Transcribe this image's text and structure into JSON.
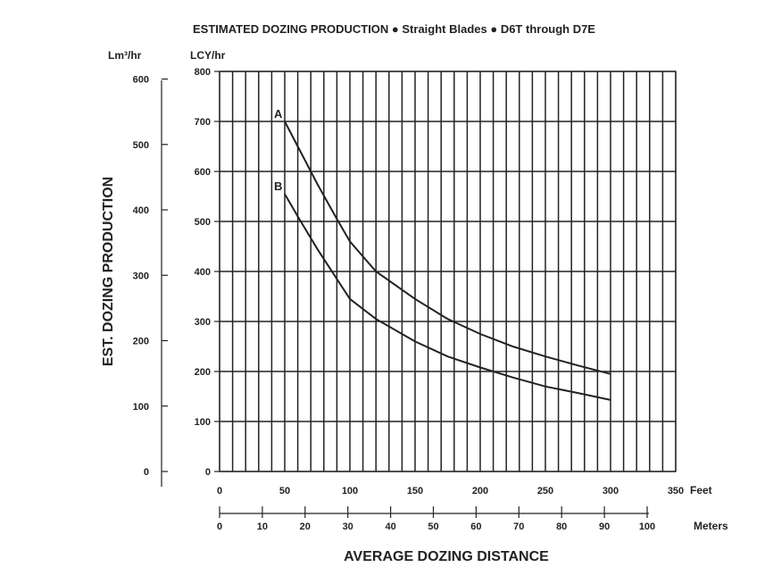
{
  "chart_data": {
    "type": "line",
    "title": "ESTIMATED DOZING PRODUCTION ● Straight Blades ● D6T through D7E",
    "ylabel": "EST. DOZING PRODUCTION",
    "xlabel": "AVERAGE DOZING DISTANCE",
    "y_unit_lcy": "LCY/hr",
    "y_unit_m3": "Lm³/hr",
    "x_unit_feet": "Feet",
    "x_unit_meters": "Meters",
    "ylim_lcy": [
      0,
      800
    ],
    "ylim_m3": [
      0,
      600
    ],
    "xlim_feet": [
      0,
      350
    ],
    "xlim_meters": [
      0,
      100
    ],
    "y_ticks_lcy": [
      0,
      100,
      200,
      300,
      400,
      500,
      600,
      700,
      800
    ],
    "y_ticks_m3": [
      0,
      100,
      200,
      300,
      400,
      500,
      600
    ],
    "x_ticks_feet": [
      0,
      50,
      100,
      150,
      200,
      250,
      300,
      350
    ],
    "x_ticks_meters": [
      0,
      10,
      20,
      30,
      40,
      50,
      60,
      70,
      80,
      90,
      100
    ],
    "grid": true,
    "series": [
      {
        "name": "A",
        "x": [
          50,
          60,
          75,
          90,
          100,
          120,
          150,
          175,
          200,
          225,
          250,
          275,
          300
        ],
        "y": [
          700,
          650,
          575,
          505,
          460,
          400,
          345,
          305,
          275,
          250,
          230,
          212,
          195
        ]
      },
      {
        "name": "B",
        "x": [
          50,
          60,
          75,
          90,
          100,
          120,
          150,
          175,
          200,
          225,
          250,
          275,
          300
        ],
        "y": [
          555,
          510,
          445,
          385,
          345,
          305,
          260,
          230,
          208,
          188,
          170,
          157,
          143
        ]
      }
    ]
  }
}
